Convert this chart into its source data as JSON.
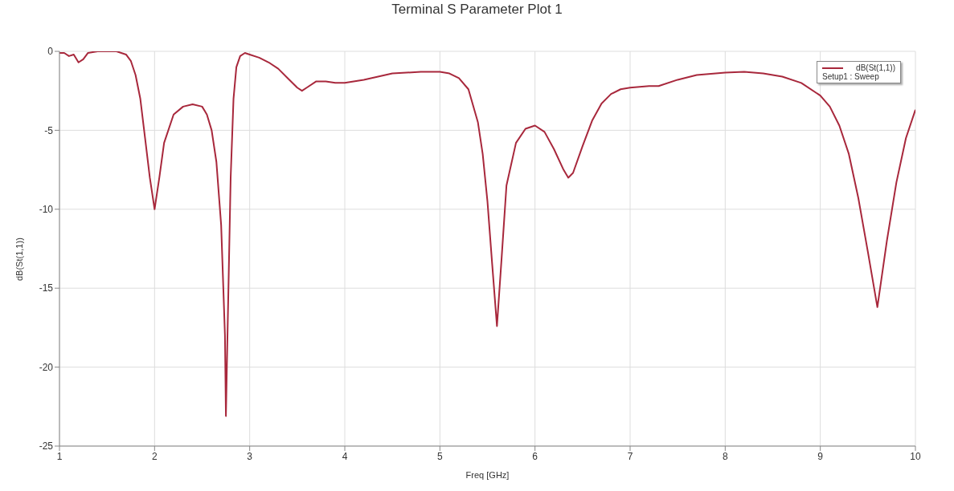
{
  "chart_data": {
    "type": "line",
    "title": "Terminal S Parameter Plot 1",
    "xlabel": "Freq [GHz]",
    "ylabel": "dB(St(1,1))",
    "legend_title": "Setup1 : Sweep",
    "x": [
      1.0,
      1.05,
      1.1,
      1.15,
      1.2,
      1.25,
      1.3,
      1.4,
      1.6,
      1.7,
      1.75,
      1.8,
      1.85,
      1.9,
      1.95,
      2.0,
      2.05,
      2.1,
      2.2,
      2.3,
      2.4,
      2.5,
      2.55,
      2.6,
      2.65,
      2.7,
      2.74,
      2.75,
      2.76,
      2.78,
      2.8,
      2.83,
      2.86,
      2.9,
      2.95,
      3.0,
      3.1,
      3.2,
      3.3,
      3.4,
      3.5,
      3.55,
      3.6,
      3.7,
      3.8,
      3.9,
      4.0,
      4.2,
      4.5,
      4.8,
      5.0,
      5.1,
      5.2,
      5.3,
      5.4,
      5.45,
      5.5,
      5.55,
      5.6,
      5.65,
      5.7,
      5.8,
      5.9,
      6.0,
      6.1,
      6.2,
      6.3,
      6.35,
      6.4,
      6.5,
      6.6,
      6.7,
      6.8,
      6.9,
      7.0,
      7.2,
      7.3,
      7.5,
      7.7,
      8.0,
      8.2,
      8.4,
      8.6,
      8.8,
      9.0,
      9.1,
      9.2,
      9.3,
      9.4,
      9.5,
      9.6,
      9.7,
      9.8,
      9.9,
      10.0
    ],
    "series": [
      {
        "name": "dB(St(1,1))",
        "color": "#a8283c",
        "values": [
          -0.1,
          -0.1,
          -0.3,
          -0.2,
          -0.7,
          -0.5,
          -0.1,
          0,
          0,
          -0.2,
          -0.6,
          -1.5,
          -3,
          -5.5,
          -8,
          -10,
          -8,
          -5.8,
          -4,
          -3.5,
          -3.35,
          -3.5,
          -4,
          -5,
          -7,
          -11,
          -18,
          -23.1,
          -20,
          -14,
          -8,
          -3,
          -1,
          -0.3,
          -0.1,
          -0.2,
          -0.4,
          -0.7,
          -1.1,
          -1.7,
          -2.3,
          -2.5,
          -2.3,
          -1.9,
          -1.9,
          -2.0,
          -2.0,
          -1.8,
          -1.4,
          -1.3,
          -1.3,
          -1.4,
          -1.7,
          -2.4,
          -4.5,
          -6.5,
          -9.5,
          -13.5,
          -17.4,
          -13,
          -8.5,
          -5.8,
          -4.9,
          -4.7,
          -5.1,
          -6.2,
          -7.5,
          -8.0,
          -7.7,
          -6.0,
          -4.4,
          -3.3,
          -2.7,
          -2.4,
          -2.3,
          -2.2,
          -2.2,
          -1.8,
          -1.5,
          -1.35,
          -1.3,
          -1.4,
          -1.6,
          -2.0,
          -2.8,
          -3.5,
          -4.7,
          -6.5,
          -9.3,
          -12.7,
          -16.2,
          -12,
          -8.3,
          -5.5,
          -3.7
        ]
      }
    ],
    "xlim": [
      1,
      10
    ],
    "xticks": [
      1,
      2,
      3,
      4,
      5,
      6,
      7,
      8,
      9,
      10
    ],
    "ylim": [
      -25,
      0
    ],
    "yticks": [
      -25,
      -20,
      -15,
      -10,
      -5,
      0
    ],
    "grid": true,
    "legend": "top right",
    "marker": "none",
    "line_style": "solid"
  }
}
